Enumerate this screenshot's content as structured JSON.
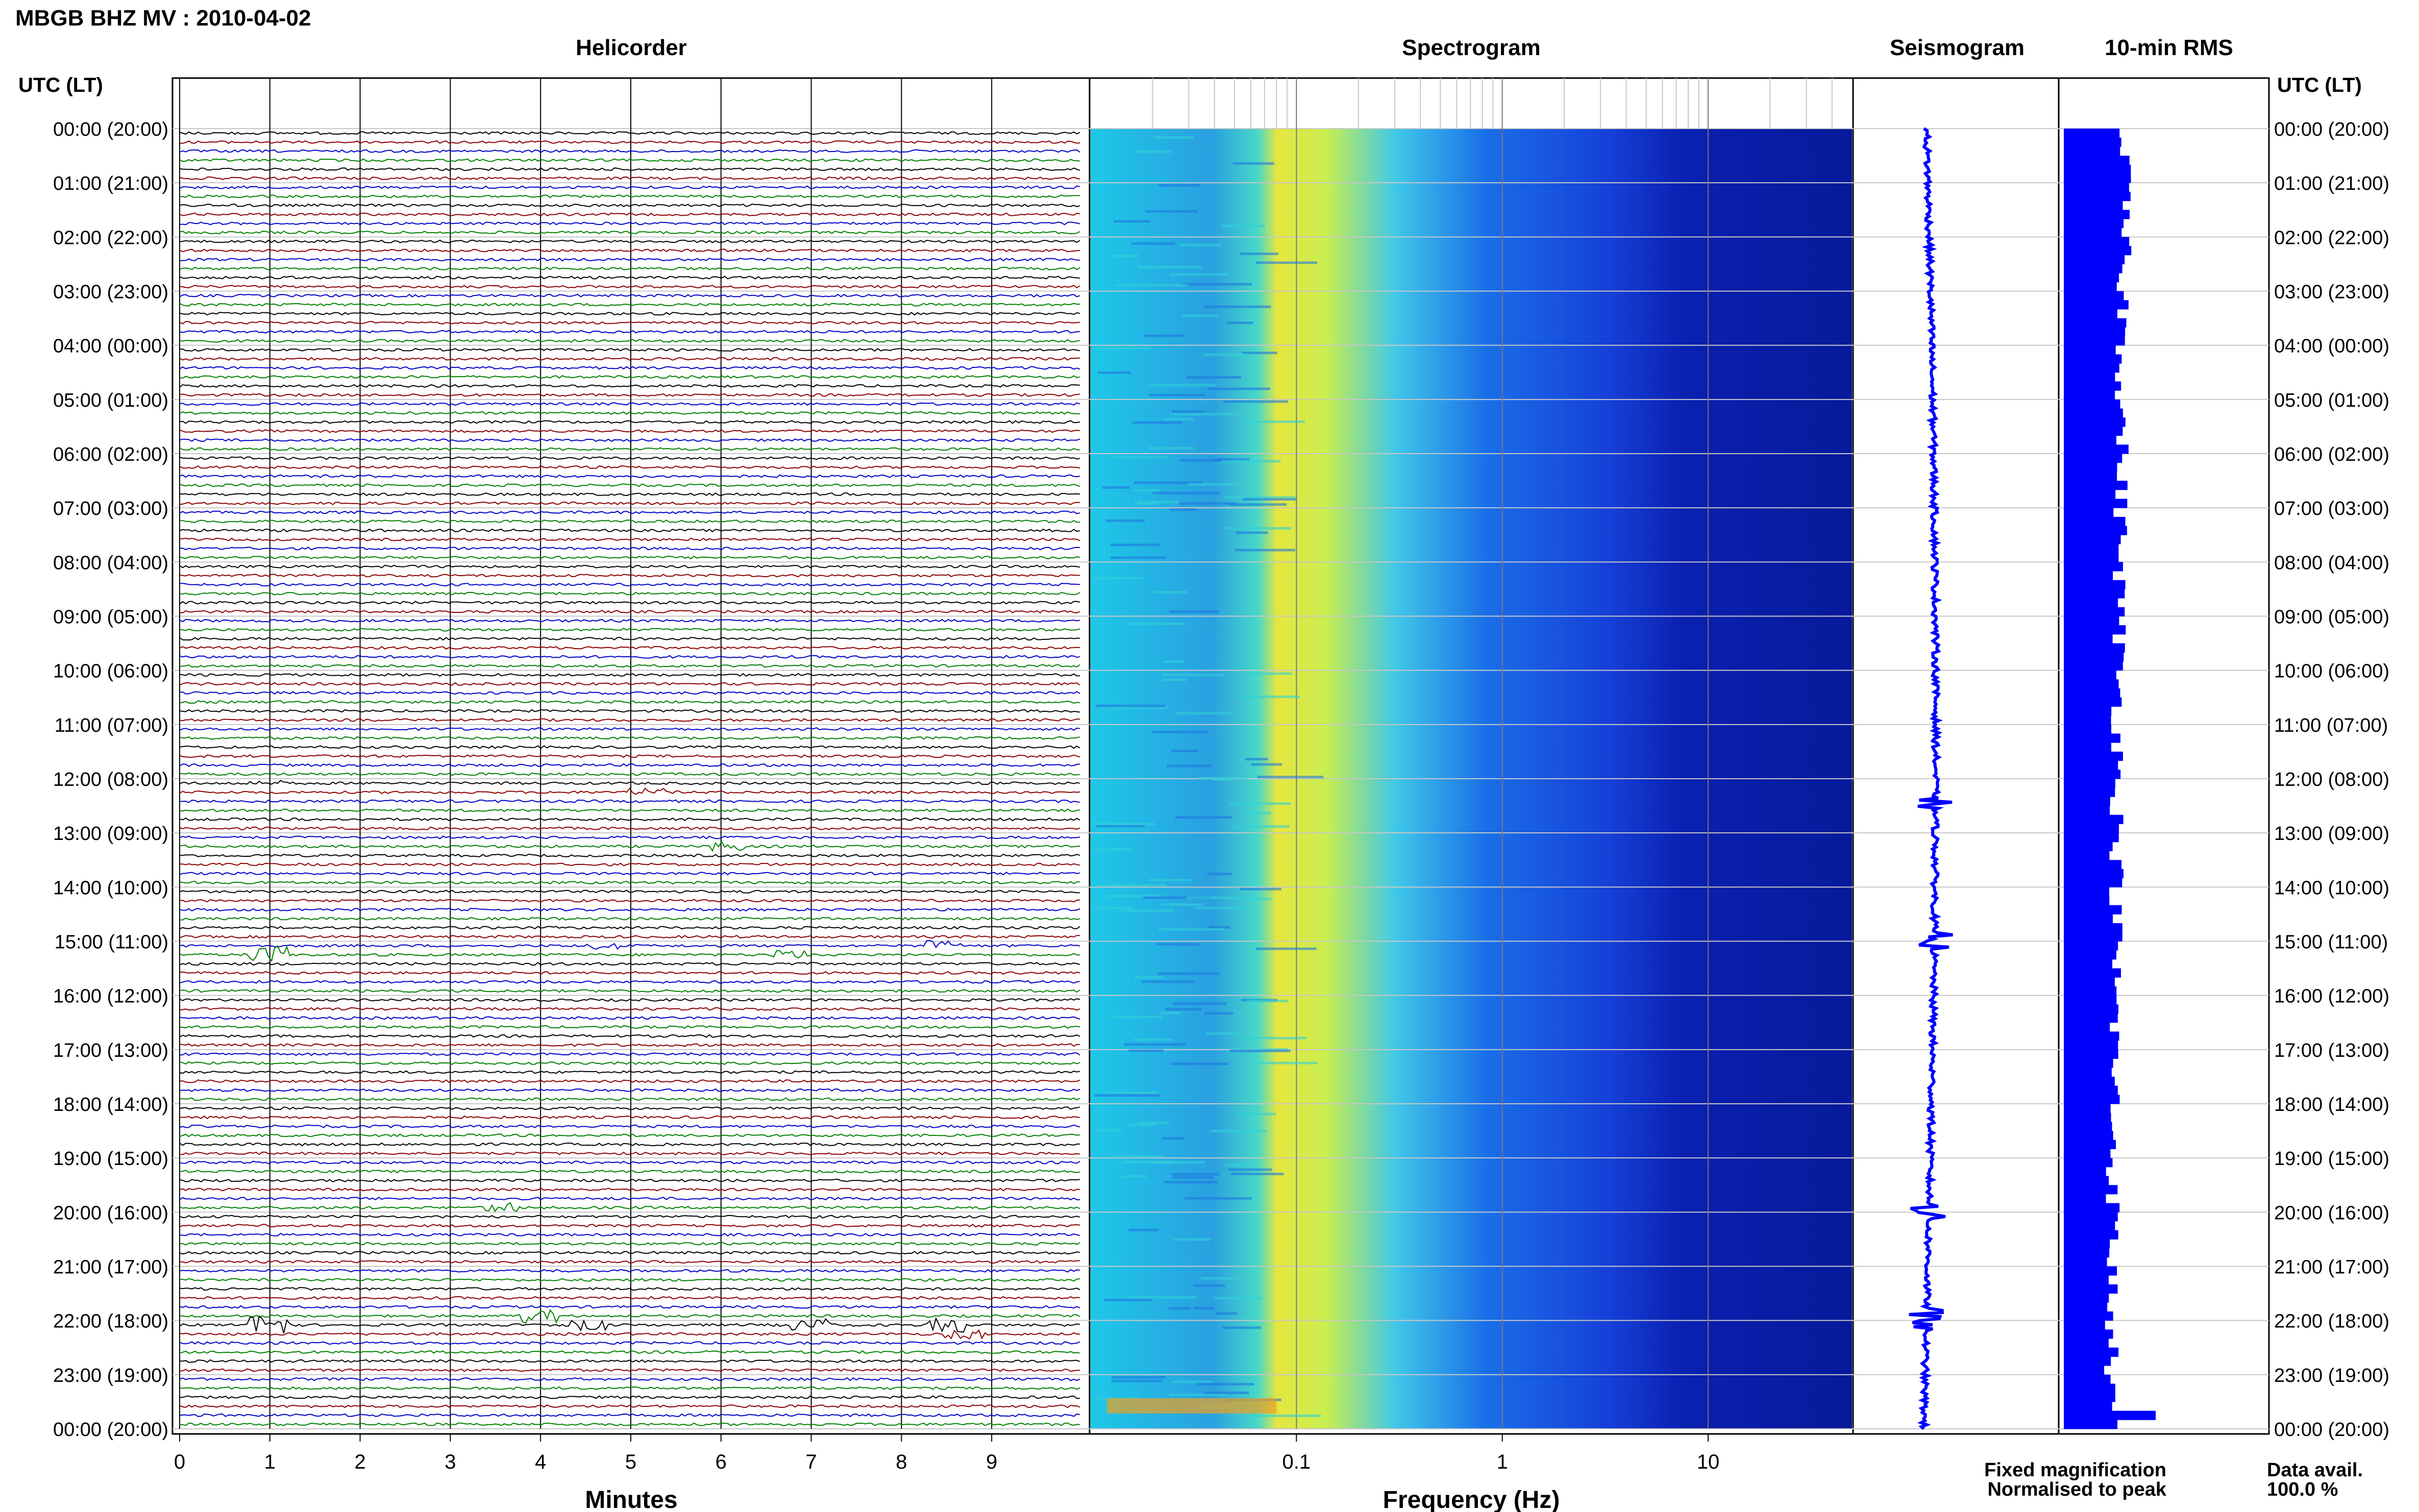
{
  "title": "MBGB BHZ MV : 2010-04-02",
  "panels": {
    "helicorder": "Helicorder",
    "spectrogram": "Spectrogram",
    "seismogram": "Seismogram",
    "rms": "10-min RMS"
  },
  "time_axis_label": "UTC (LT)",
  "time_labels": [
    "00:00 (20:00)",
    "01:00 (21:00)",
    "02:00 (22:00)",
    "03:00 (23:00)",
    "04:00 (00:00)",
    "05:00 (01:00)",
    "06:00 (02:00)",
    "07:00 (03:00)",
    "08:00 (04:00)",
    "09:00 (05:00)",
    "10:00 (06:00)",
    "11:00 (07:00)",
    "12:00 (08:00)",
    "13:00 (09:00)",
    "14:00 (10:00)",
    "15:00 (11:00)",
    "16:00 (12:00)",
    "17:00 (13:00)",
    "18:00 (14:00)",
    "19:00 (15:00)",
    "20:00 (16:00)",
    "21:00 (17:00)",
    "22:00 (18:00)",
    "23:00 (19:00)",
    "00:00 (20:00)"
  ],
  "footer": {
    "minutes_label": "Minutes",
    "frequency_label": "Frequency (Hz)",
    "fixed_magnification": "Fixed magnification",
    "normalised_to_peak": "Normalised to peak",
    "data_avail_label": "Data avail.",
    "data_avail_value": "100.0 %"
  },
  "colors": {
    "trace_cycle": [
      "#000000",
      "#8b0000",
      "#0000cc",
      "#008000"
    ],
    "fixed_magnification": "#0000ff",
    "normalised_to_peak": "#ff0000",
    "rms_bar": "#0000ff"
  },
  "chart_data": [
    {
      "type": "line",
      "panel": "Helicorder",
      "xlabel": "Minutes",
      "x_ticks": [
        0,
        1,
        2,
        3,
        4,
        5,
        6,
        7,
        8,
        9
      ],
      "xlim": [
        0,
        10
      ],
      "ylim_hours_utc": [
        0,
        24
      ],
      "traces_per_hour": 6,
      "events": [
        {
          "hour": 12.0,
          "minute": 1.0,
          "amp": 1
        },
        {
          "hour": 12.2,
          "minute": 5.2,
          "amp": 2
        },
        {
          "hour": 13.2,
          "minute": 6.1,
          "amp": 2
        },
        {
          "hour": 15.1,
          "minute": 1.0,
          "amp": 4
        },
        {
          "hour": 15.0,
          "minute": 8.5,
          "amp": 2
        },
        {
          "hour": 15.0,
          "minute": 4.7,
          "amp": 2
        },
        {
          "hour": 15.2,
          "minute": 6.8,
          "amp": 2
        },
        {
          "hour": 19.9,
          "minute": 3.6,
          "amp": 2
        },
        {
          "hour": 21.9,
          "minute": 4.0,
          "amp": 3
        },
        {
          "hour": 22.0,
          "minute": 1.0,
          "amp": 4
        },
        {
          "hour": 22.0,
          "minute": 4.5,
          "amp": 3
        },
        {
          "hour": 22.0,
          "minute": 7.0,
          "amp": 3
        },
        {
          "hour": 22.0,
          "minute": 8.5,
          "amp": 3
        },
        {
          "hour": 22.2,
          "minute": 8.7,
          "amp": 2
        }
      ]
    },
    {
      "type": "heatmap",
      "panel": "Spectrogram",
      "xlabel": "Frequency (Hz)",
      "x_scale": "log",
      "x_ticks": [
        0.1,
        1,
        10
      ],
      "x_tick_labels": [
        "0.1",
        "1",
        "10"
      ],
      "xlim": [
        0.01,
        50
      ],
      "ylim_hours_utc": [
        0,
        24
      ],
      "colormap": "jet",
      "energy_peak_hz": [
        0.15,
        0.5
      ]
    },
    {
      "type": "line",
      "panel": "Seismogram",
      "ylim_hours_utc": [
        0,
        24
      ],
      "spikes_hours": [
        12.5,
        15.0,
        20.0,
        21.9,
        22.1
      ]
    },
    {
      "type": "bar",
      "panel": "10-min RMS",
      "orientation": "horizontal",
      "ylim_hours_utc": [
        0,
        24
      ],
      "bin_minutes": 10,
      "peak_near_hour": 23.6
    }
  ]
}
